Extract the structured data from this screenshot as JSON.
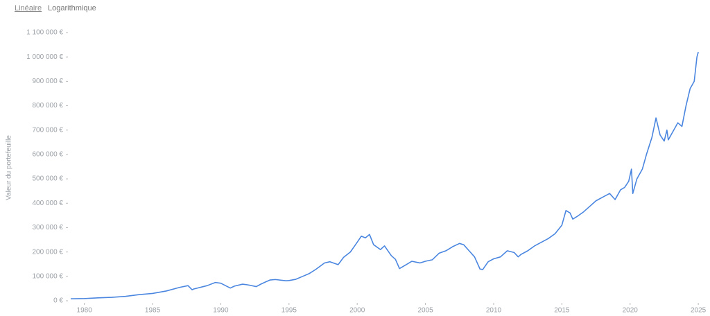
{
  "tabs": [
    "Linéaire",
    "Logarithmique"
  ],
  "chart_data": {
    "type": "line",
    "y_label": "Valeur du portefeuille",
    "xlim": [
      1978.9,
      2025.4
    ],
    "xticks": [
      1980,
      1985,
      1990,
      1995,
      2000,
      2005,
      2010,
      2015,
      2020,
      2025
    ],
    "ylim": [
      0,
      1100000
    ],
    "yticks": [
      {
        "value": 0,
        "label": "0 €"
      },
      {
        "value": 100000,
        "label": "100 000 €"
      },
      {
        "value": 200000,
        "label": "200 000 €"
      },
      {
        "value": 300000,
        "label": "300 000 €"
      },
      {
        "value": 400000,
        "label": "400 000 €"
      },
      {
        "value": 500000,
        "label": "500 000 €"
      },
      {
        "value": 600000,
        "label": "600 000 €"
      },
      {
        "value": 700000,
        "label": "700 000 €"
      },
      {
        "value": 800000,
        "label": "800 000 €"
      },
      {
        "value": 900000,
        "label": "900 000 €"
      },
      {
        "value": 1000000,
        "label": "1 000 000 €"
      },
      {
        "value": 1100000,
        "label": "1 100 000 €"
      }
    ],
    "grid": false,
    "color": "#4a86e0",
    "x": [
      1979.0,
      1980,
      1981,
      1982,
      1983,
      1984,
      1985,
      1986,
      1987,
      1987.6,
      1987.9,
      1988,
      1989,
      1989.6,
      1990,
      1990.7,
      1991,
      1991.6,
      1992,
      1992.6,
      1993,
      1993.6,
      1994,
      1994.8,
      1995,
      1995.5,
      1996,
      1996.5,
      1997,
      1997.6,
      1998,
      1998.6,
      1999,
      1999.5,
      2000,
      2000.3,
      2000.6,
      2000.9,
      2001.2,
      2001.7,
      2002,
      2002.5,
      2002.8,
      2003.1,
      2003.5,
      2004,
      2004.6,
      2005,
      2005.5,
      2006,
      2006.5,
      2007,
      2007.5,
      2007.8,
      2008.2,
      2008.6,
      2009.0,
      2009.2,
      2009.6,
      2010,
      2010.5,
      2011,
      2011.5,
      2011.8,
      2012,
      2012.5,
      2013,
      2013.5,
      2014,
      2014.5,
      2015,
      2015.3,
      2015.6,
      2015.8,
      2016.1,
      2016.6,
      2017,
      2017.5,
      2018,
      2018.5,
      2018.9,
      2019.3,
      2019.6,
      2019.9,
      2020.1,
      2020.2,
      2020.5,
      2020.9,
      2021.2,
      2021.6,
      2021.9,
      2022.2,
      2022.5,
      2022.7,
      2022.8,
      2023.2,
      2023.5,
      2023.8,
      2024.1,
      2024.4,
      2024.7,
      2024.9,
      2025.0
    ],
    "values": [
      8000,
      9000,
      12000,
      14000,
      18000,
      25000,
      30000,
      40000,
      55000,
      62000,
      45000,
      48000,
      62000,
      75000,
      72000,
      52000,
      60000,
      68000,
      65000,
      58000,
      70000,
      85000,
      87000,
      82000,
      83000,
      88000,
      100000,
      112000,
      130000,
      155000,
      160000,
      148000,
      178000,
      200000,
      240000,
      265000,
      258000,
      272000,
      230000,
      210000,
      225000,
      185000,
      170000,
      132000,
      145000,
      162000,
      155000,
      162000,
      168000,
      195000,
      205000,
      222000,
      235000,
      230000,
      205000,
      180000,
      130000,
      128000,
      160000,
      172000,
      180000,
      205000,
      198000,
      180000,
      190000,
      205000,
      225000,
      240000,
      255000,
      275000,
      310000,
      370000,
      360000,
      335000,
      345000,
      365000,
      385000,
      410000,
      425000,
      440000,
      415000,
      455000,
      465000,
      490000,
      540000,
      440000,
      500000,
      540000,
      600000,
      670000,
      750000,
      680000,
      655000,
      700000,
      660000,
      700000,
      730000,
      715000,
      800000,
      870000,
      900000,
      1000000,
      1020000
    ]
  }
}
